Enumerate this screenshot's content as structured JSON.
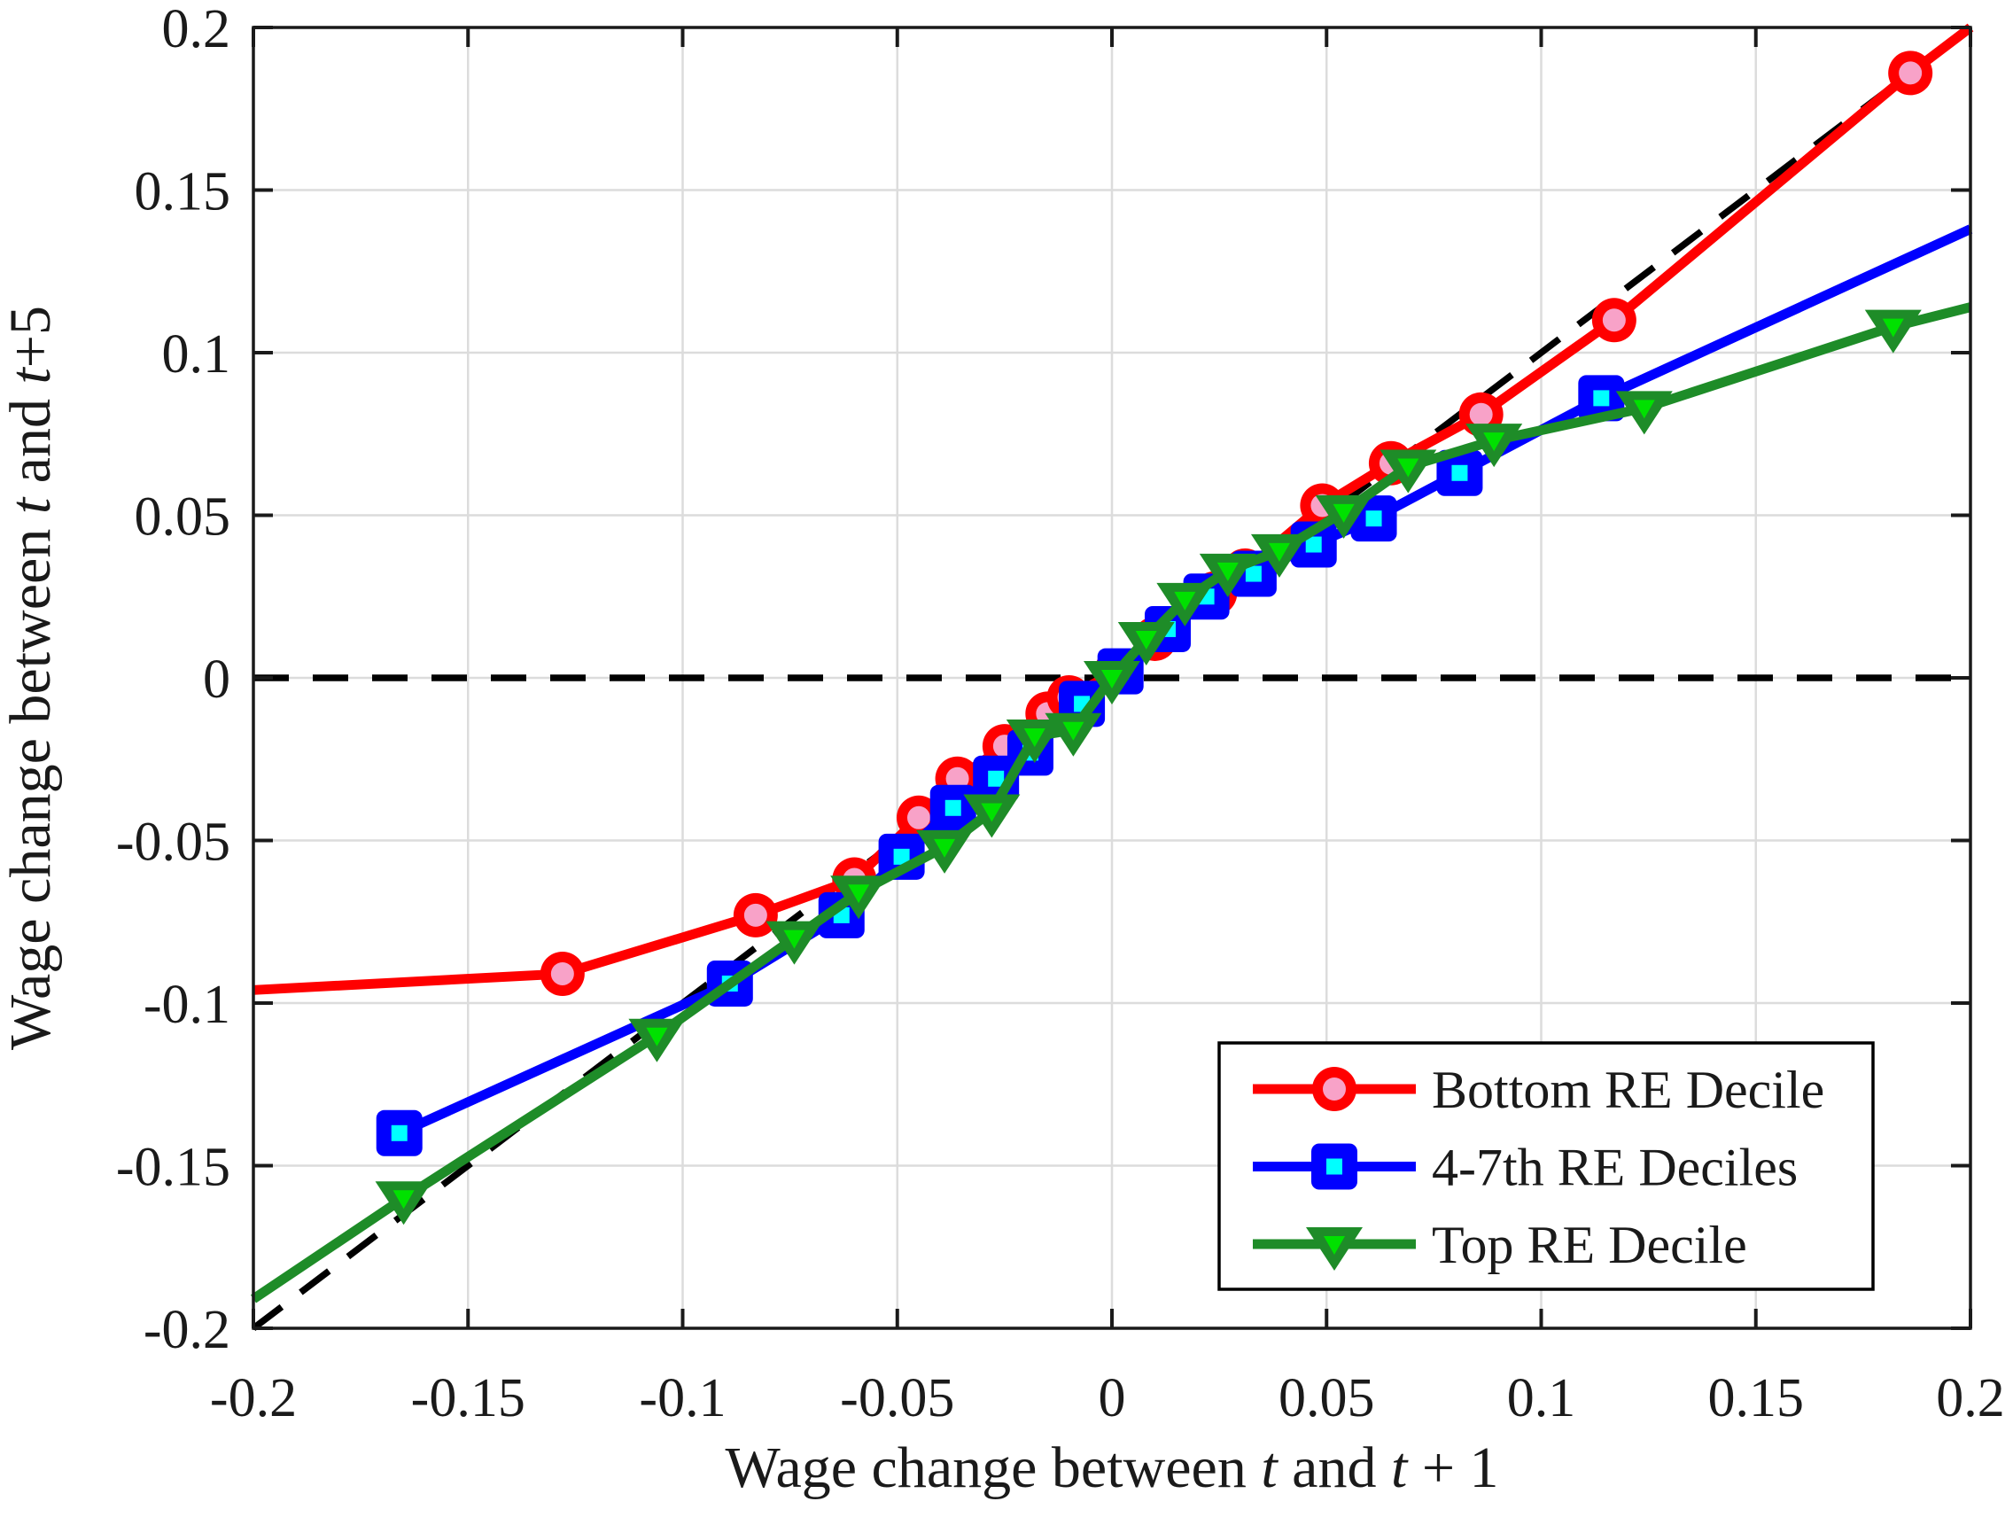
{
  "chart_data": {
    "type": "line",
    "title": "",
    "xlabel_parts": [
      {
        "t": "Wage change between ",
        "i": false
      },
      {
        "t": "t",
        "i": true
      },
      {
        "t": " and ",
        "i": false
      },
      {
        "t": "t",
        "i": true
      },
      {
        "t": " + 1",
        "i": false
      }
    ],
    "ylabel_parts": [
      {
        "t": "Wage change between ",
        "i": false
      },
      {
        "t": "t",
        "i": true
      },
      {
        "t": " and ",
        "i": false
      },
      {
        "t": "t",
        "i": true
      },
      {
        "t": "+5",
        "i": false
      }
    ],
    "xlim": [
      -0.2,
      0.2
    ],
    "ylim": [
      -0.2,
      0.2
    ],
    "xtick_values": [
      -0.2,
      -0.15,
      -0.1,
      -0.05,
      0,
      0.05,
      0.1,
      0.15,
      0.2
    ],
    "xtick_labels": [
      "-0.2",
      "-0.15",
      "-0.1",
      "-0.05",
      "0",
      "0.05",
      "0.1",
      "0.15",
      "0.2"
    ],
    "ytick_values": [
      -0.2,
      -0.15,
      -0.1,
      -0.05,
      0,
      0.05,
      0.1,
      0.15,
      0.2
    ],
    "ytick_labels": [
      "-0.2",
      "-0.15",
      "-0.1",
      "-0.05",
      "0",
      "0.05",
      "0.1",
      "0.15",
      "0.2"
    ],
    "grid": true,
    "grid_color": "#dcdcdc",
    "axis_color": "#1a1a1a",
    "legend_position": "lower right",
    "reference_lines": [
      {
        "name": "45-degree-line",
        "style": "dashed",
        "color": "#000000",
        "from": [
          -0.2,
          -0.2
        ],
        "to": [
          0.2,
          0.2
        ]
      },
      {
        "name": "zero-line",
        "style": "dashed",
        "color": "#000000",
        "from": [
          -0.2,
          0
        ],
        "to": [
          0.2,
          0
        ]
      }
    ],
    "series": [
      {
        "name": "Bottom RE Decile",
        "color": "#ff0000",
        "marker": "circle",
        "marker_face": "#f8a2c8",
        "edge_start": [
          -0.2,
          -0.096
        ],
        "edge_end": [
          0.2,
          0.2
        ],
        "points": [
          [
            -0.128,
            -0.091
          ],
          [
            -0.083,
            -0.073
          ],
          [
            -0.06,
            -0.062
          ],
          [
            -0.045,
            -0.043
          ],
          [
            -0.036,
            -0.031
          ],
          [
            -0.025,
            -0.021
          ],
          [
            -0.015,
            -0.011
          ],
          [
            -0.01,
            -0.006
          ],
          [
            0.001,
            0.002
          ],
          [
            0.01,
            0.012
          ],
          [
            0.024,
            0.026
          ],
          [
            0.031,
            0.033
          ],
          [
            0.049,
            0.053
          ],
          [
            0.065,
            0.066
          ],
          [
            0.086,
            0.081
          ],
          [
            0.117,
            0.11
          ],
          [
            0.186,
            0.186
          ]
        ]
      },
      {
        "name": "4-7th RE Deciles",
        "color": "#0000ff",
        "marker": "square",
        "marker_face": "#00ffff",
        "edge_start": null,
        "edge_end": [
          0.2,
          0.138
        ],
        "points": [
          [
            -0.166,
            -0.14
          ],
          [
            -0.089,
            -0.094
          ],
          [
            -0.063,
            -0.073
          ],
          [
            -0.049,
            -0.055
          ],
          [
            -0.037,
            -0.04
          ],
          [
            -0.027,
            -0.031
          ],
          [
            -0.019,
            -0.023
          ],
          [
            -0.007,
            -0.008
          ],
          [
            0.002,
            0.002
          ],
          [
            0.013,
            0.015
          ],
          [
            0.022,
            0.025
          ],
          [
            0.033,
            0.032
          ],
          [
            0.047,
            0.041
          ],
          [
            0.061,
            0.049
          ],
          [
            0.081,
            0.063
          ],
          [
            0.114,
            0.086
          ]
        ]
      },
      {
        "name": "Top RE Decile",
        "color": "#1e8c28",
        "marker": "triangle-down",
        "marker_face": "#00e100",
        "edge_start": [
          -0.2,
          -0.191
        ],
        "edge_end": [
          0.2,
          0.114
        ],
        "points": [
          [
            -0.165,
            -0.16
          ],
          [
            -0.106,
            -0.11
          ],
          [
            -0.074,
            -0.08
          ],
          [
            -0.059,
            -0.066
          ],
          [
            -0.039,
            -0.052
          ],
          [
            -0.028,
            -0.041
          ],
          [
            -0.018,
            -0.018
          ],
          [
            -0.009,
            -0.016
          ],
          [
            0.0,
            0.0
          ],
          [
            0.008,
            0.012
          ],
          [
            0.017,
            0.024
          ],
          [
            0.027,
            0.033
          ],
          [
            0.039,
            0.039
          ],
          [
            0.054,
            0.051
          ],
          [
            0.069,
            0.065
          ],
          [
            0.089,
            0.073
          ],
          [
            0.124,
            0.083
          ],
          [
            0.182,
            0.108
          ]
        ]
      }
    ],
    "legend": {
      "items": [
        {
          "label": "Bottom RE Decile",
          "marker": "red-circle-marker"
        },
        {
          "label": "4-7th RE Deciles",
          "marker": "blue-square-marker"
        },
        {
          "label": "Top RE Decile",
          "marker": "green-triangle-down-marker"
        }
      ]
    }
  }
}
